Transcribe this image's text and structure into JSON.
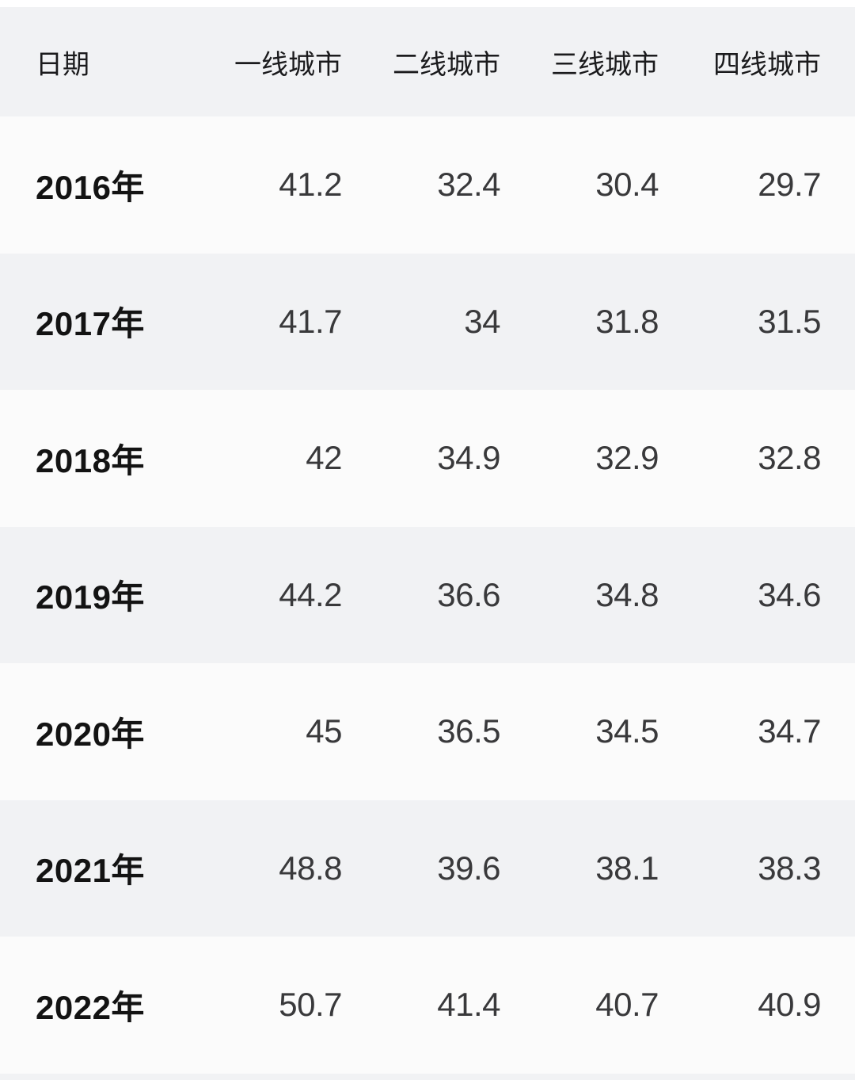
{
  "table": {
    "columns": [
      "日期",
      "一线城市",
      "二线城市",
      "三线城市",
      "四线城市"
    ],
    "rows": [
      {
        "label": "2016年",
        "values": [
          "41.2",
          "32.4",
          "30.4",
          "29.7"
        ]
      },
      {
        "label": "2017年",
        "values": [
          "41.7",
          "34",
          "31.8",
          "31.5"
        ]
      },
      {
        "label": "2018年",
        "values": [
          "42",
          "34.9",
          "32.9",
          "32.8"
        ]
      },
      {
        "label": "2019年",
        "values": [
          "44.2",
          "36.6",
          "34.8",
          "34.6"
        ]
      },
      {
        "label": "2020年",
        "values": [
          "45",
          "36.5",
          "34.5",
          "34.7"
        ]
      },
      {
        "label": "2021年",
        "values": [
          "48.8",
          "39.6",
          "38.1",
          "38.3"
        ]
      },
      {
        "label": "2022年",
        "values": [
          "50.7",
          "41.4",
          "40.7",
          "40.9"
        ]
      }
    ]
  },
  "chart_data": {
    "type": "table",
    "title": "",
    "categories": [
      "2016年",
      "2017年",
      "2018年",
      "2019年",
      "2020年",
      "2021年",
      "2022年"
    ],
    "category_column": "日期",
    "series": [
      {
        "name": "一线城市",
        "values": [
          41.2,
          41.7,
          42,
          44.2,
          45,
          48.8,
          50.7
        ]
      },
      {
        "name": "二线城市",
        "values": [
          32.4,
          34,
          34.9,
          36.6,
          36.5,
          39.6,
          41.4
        ]
      },
      {
        "name": "三线城市",
        "values": [
          30.4,
          31.8,
          32.9,
          34.8,
          34.5,
          38.1,
          40.7
        ]
      },
      {
        "name": "四线城市",
        "values": [
          29.7,
          31.5,
          32.8,
          34.6,
          34.7,
          38.3,
          40.9
        ]
      }
    ],
    "layout_hints": {
      "zebra_striping": true,
      "numeric_alignment": "right",
      "label_alignment": "left"
    }
  },
  "colors": {
    "header_bg": "#f1f2f4",
    "row_alt_bg": "#f1f2f4",
    "row_base_bg": "#fbfbfb",
    "page_bg": "#ffffff",
    "header_text": "#1b1b1d",
    "year_text": "#131313",
    "number_text": "#39393b"
  }
}
